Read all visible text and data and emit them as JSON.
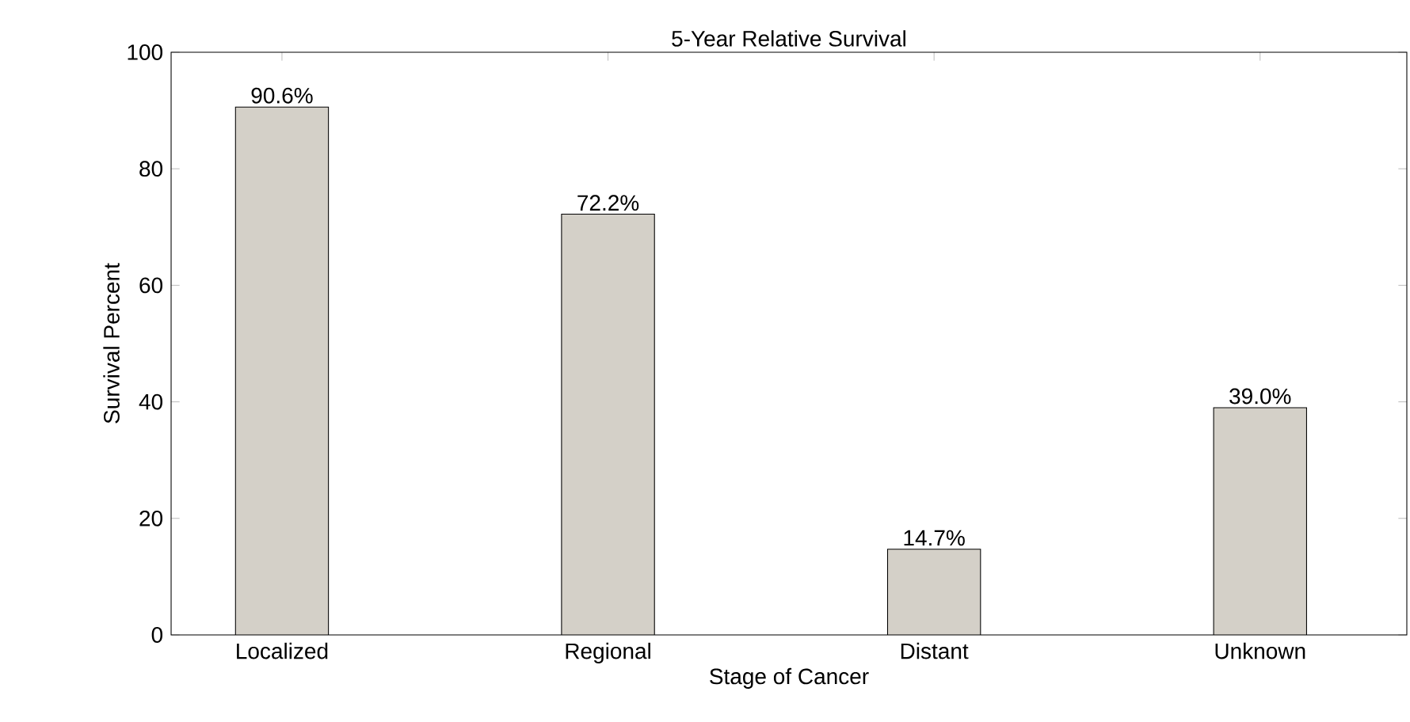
{
  "chart_data": {
    "type": "bar",
    "title": "5-Year Relative Survival",
    "xlabel": "Stage of Cancer",
    "ylabel": "Survival Percent",
    "categories": [
      "Localized",
      "Regional",
      "Distant",
      "Unknown"
    ],
    "values": [
      90.6,
      72.2,
      14.7,
      39.0
    ],
    "value_labels": [
      "90.6%",
      "72.2%",
      "14.7%",
      "39.0%"
    ],
    "color": "#d4d0c8",
    "ylim": [
      0,
      100
    ],
    "yticks": [
      0,
      20,
      40,
      60,
      80,
      100
    ],
    "grid": false
  }
}
